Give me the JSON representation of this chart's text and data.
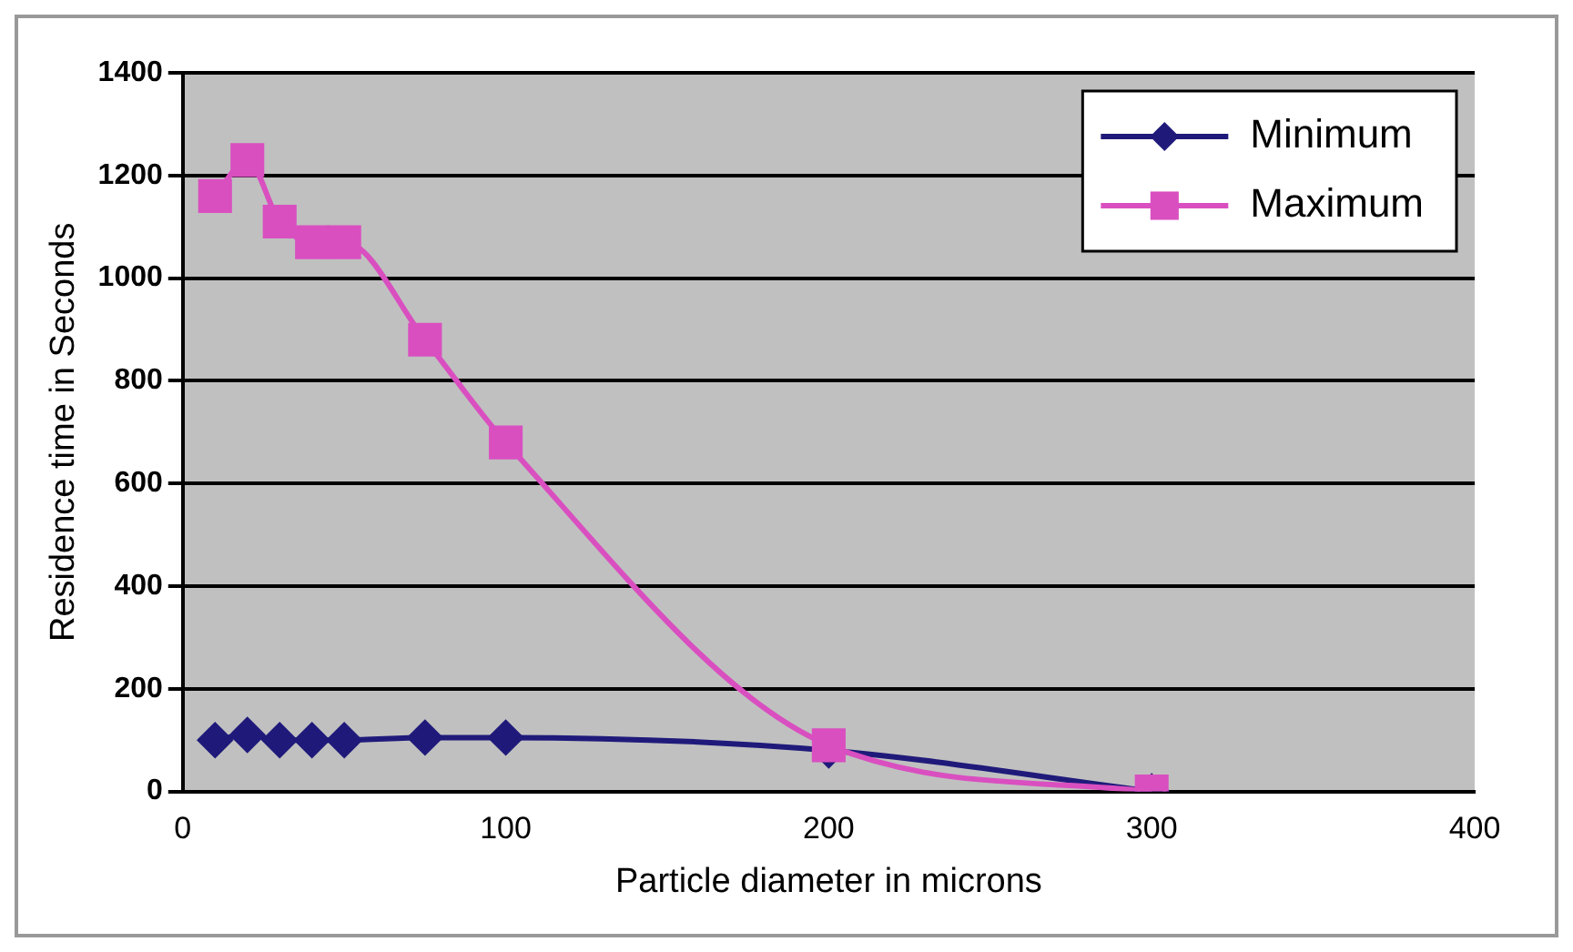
{
  "chart_data": {
    "type": "line",
    "xlabel": "Particle diameter in microns",
    "ylabel": "Residence time in Seconds",
    "x": [
      10,
      20,
      30,
      40,
      50,
      75,
      100,
      200,
      300
    ],
    "series": [
      {
        "name": "Minimum",
        "color": "#1f1a7a",
        "marker": "diamond",
        "values": [
          100,
          110,
          100,
          100,
          100,
          105,
          105,
          80,
          0
        ]
      },
      {
        "name": "Maximum",
        "color": "#d94fc0",
        "marker": "square",
        "values": [
          1160,
          1230,
          1110,
          1070,
          1070,
          880,
          680,
          90,
          0
        ]
      }
    ],
    "xlim": [
      0,
      400
    ],
    "xticks": [
      0,
      100,
      200,
      300,
      400
    ],
    "ylim": [
      0,
      1400
    ],
    "yticks": [
      0,
      200,
      400,
      600,
      800,
      1000,
      1200,
      1400
    ],
    "grid": "y",
    "legend": "top right"
  }
}
